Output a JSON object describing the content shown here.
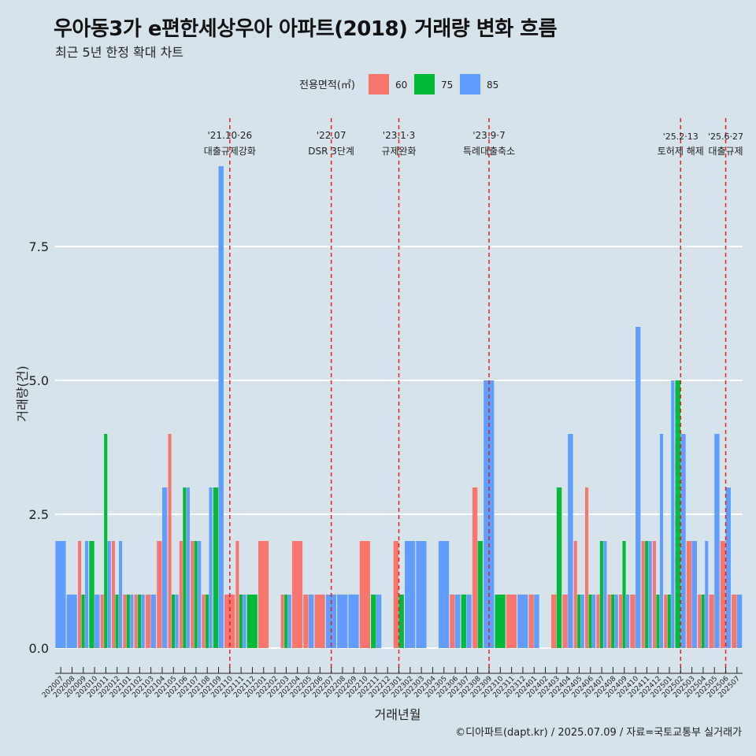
{
  "title": "우아동3가 e편한세상우아 아파트(2018) 거래량 변화 흐름",
  "subtitle": "최근 5년 한정 확대 차트",
  "caption": "©디아파트(dapt.kr) / 2025.07.09 / 자료=국토교통부 실거래가",
  "colors": {
    "background": "#d7e3ea",
    "grid": "#ffffff",
    "vline": "#e0201b",
    "s60": "#f8766d",
    "s75": "#00ba38",
    "s85": "#619cff"
  },
  "chart_data": {
    "type": "bar",
    "xlabel": "거래년월",
    "ylabel": "거래량(건)",
    "ylim": [
      0,
      9
    ],
    "yticks": [
      "0.0",
      "2.5",
      "5.0",
      "7.5"
    ],
    "legend_title": "전용면적(㎡)",
    "legend_position": "top",
    "grid": true,
    "categories": [
      "202007",
      "202008",
      "202009",
      "202010",
      "202011",
      "202012",
      "202101",
      "202102",
      "202103",
      "202104",
      "202105",
      "202106",
      "202107",
      "202108",
      "202109",
      "202110",
      "202111",
      "202112",
      "202201",
      "202202",
      "202203",
      "202204",
      "202205",
      "202206",
      "202207",
      "202208",
      "202209",
      "202210",
      "202211",
      "202212",
      "202301",
      "202302",
      "202303",
      "202304",
      "202305",
      "202306",
      "202307",
      "202308",
      "202309",
      "202310",
      "202311",
      "202312",
      "202401",
      "202402",
      "202403",
      "202404",
      "202405",
      "202406",
      "202407",
      "202408",
      "202409",
      "202410",
      "202411",
      "202412",
      "202501",
      "202502",
      "202503",
      "202504",
      "202505",
      "202506",
      "202507"
    ],
    "series": [
      {
        "name": "60",
        "values": [
          0,
          0,
          2,
          0,
          1,
          2,
          1,
          1,
          1,
          2,
          4,
          2,
          2,
          1,
          0,
          1,
          2,
          0,
          2,
          0,
          1,
          2,
          1,
          1,
          0,
          0,
          0,
          2,
          0,
          0,
          2,
          0,
          0,
          0,
          0,
          1,
          0,
          3,
          0,
          0,
          1,
          0,
          1,
          0,
          1,
          1,
          2,
          3,
          1,
          1,
          1,
          1,
          2,
          2,
          1,
          0,
          2,
          1,
          1,
          2,
          1
        ]
      },
      {
        "name": "75",
        "values": [
          0,
          0,
          1,
          2,
          4,
          1,
          1,
          1,
          0,
          0,
          1,
          3,
          2,
          1,
          3,
          0,
          1,
          1,
          0,
          0,
          1,
          0,
          0,
          0,
          0,
          0,
          0,
          0,
          1,
          0,
          1,
          0,
          0,
          0,
          0,
          0,
          1,
          2,
          0,
          1,
          0,
          0,
          0,
          0,
          3,
          0,
          1,
          1,
          2,
          1,
          2,
          0,
          2,
          1,
          1,
          5,
          0,
          1,
          0,
          0,
          0
        ]
      },
      {
        "name": "85",
        "values": [
          2,
          1,
          2,
          1,
          2,
          2,
          1,
          1,
          1,
          3,
          1,
          3,
          2,
          3,
          9,
          0,
          1,
          0,
          0,
          0,
          1,
          0,
          1,
          0,
          1,
          1,
          1,
          0,
          1,
          0,
          0,
          2,
          2,
          0,
          2,
          1,
          1,
          0,
          5,
          0,
          0,
          1,
          1,
          0,
          0,
          4,
          1,
          1,
          2,
          1,
          1,
          6,
          2,
          4,
          5,
          4,
          2,
          2,
          4,
          3,
          1
        ]
      }
    ],
    "annotations": [
      {
        "category": "202110",
        "date": "'21.10·26",
        "label": "대출규제강화"
      },
      {
        "category": "202207",
        "date": "'22.07",
        "label": "DSR 3단계"
      },
      {
        "category": "202301",
        "date": "'23.1·3",
        "label": "규제완화"
      },
      {
        "category": "202309",
        "date": "'23.9·7",
        "label": "특례대출축소"
      },
      {
        "category": "202502",
        "date": "'25.2·13",
        "label": "토허제 해제"
      },
      {
        "category": "202506",
        "date": "'25.6·27",
        "label": "대출규제"
      }
    ]
  }
}
